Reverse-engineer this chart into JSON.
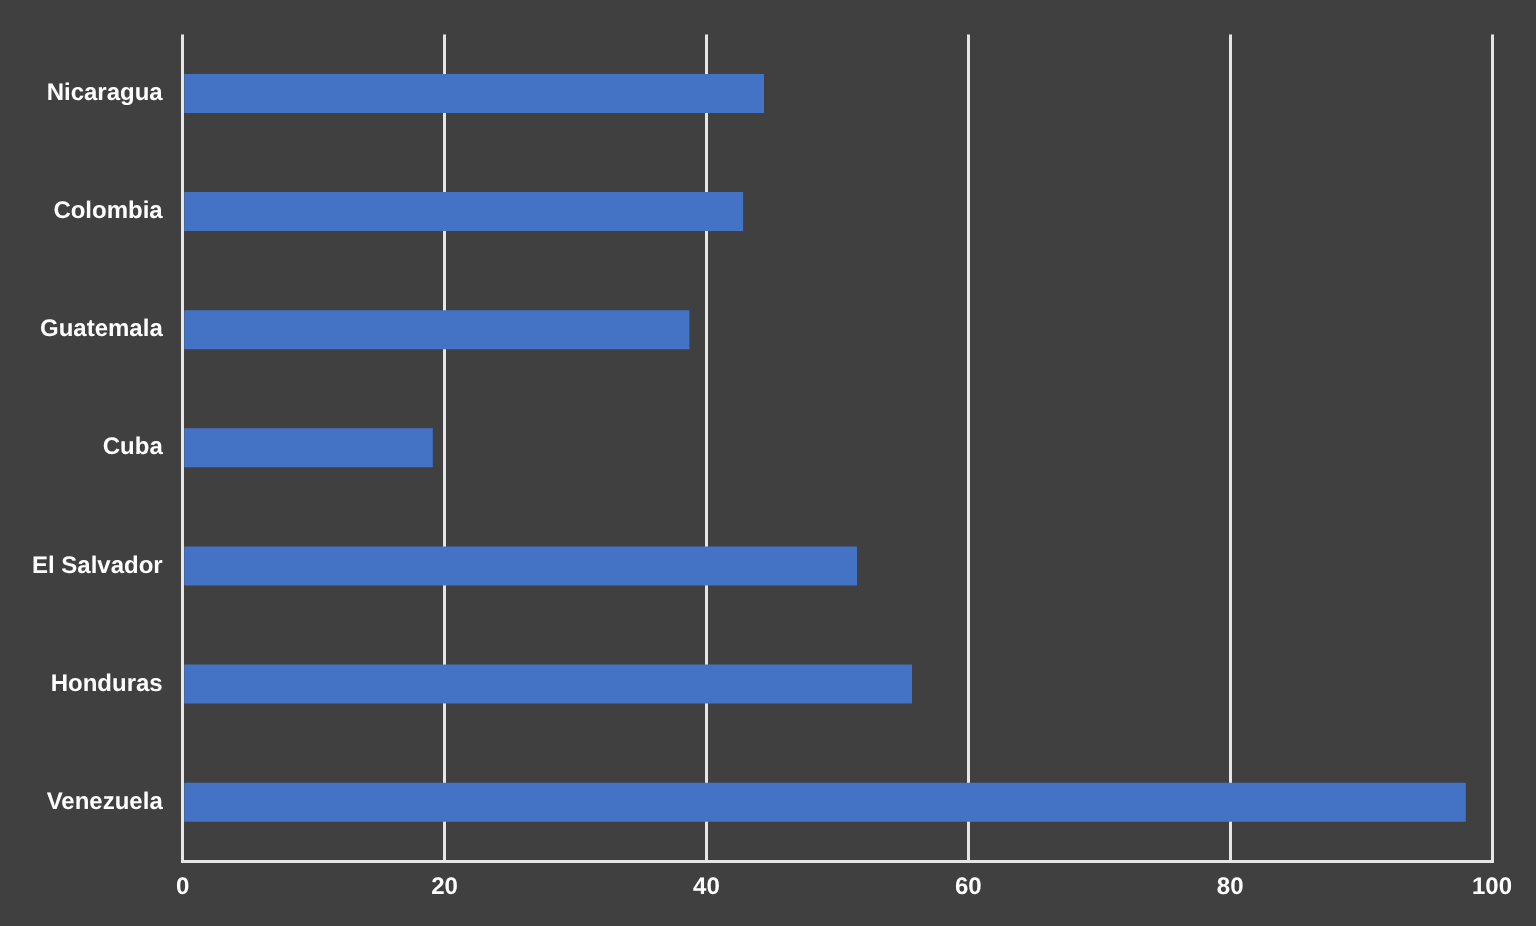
{
  "chart_data": {
    "type": "bar",
    "orientation": "horizontal",
    "categories": [
      "Nicaragua",
      "Colombia",
      "Guatemala",
      "Cuba",
      "El Salvador",
      "Honduras",
      "Venezuela"
    ],
    "values": [
      44.4,
      42.8,
      38.7,
      19.1,
      51.5,
      55.7,
      98.0
    ],
    "color": "#4472c4",
    "xlim": [
      0,
      100
    ],
    "xticks": [
      0,
      20,
      40,
      60,
      80,
      100
    ],
    "grid": "x"
  }
}
